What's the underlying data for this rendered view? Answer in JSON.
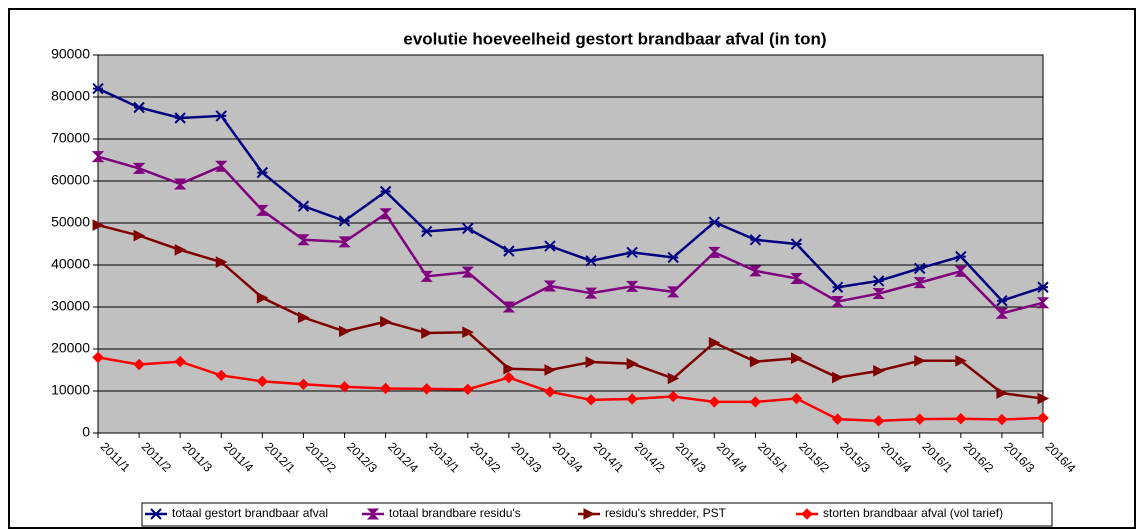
{
  "chart_data": {
    "type": "line",
    "title": "evolutie hoeveelheid gestort brandbaar afval (in ton)",
    "categories": [
      "2011/1",
      "2011/2",
      "2011/3",
      "2011/4",
      "2012/1",
      "2012/2",
      "2012/3",
      "2012/4",
      "2013/1",
      "2013/2",
      "2013/3",
      "2013/4",
      "2014/1",
      "2014/2",
      "2014/3",
      "2014/4",
      "2015/1",
      "2015/2",
      "2015/3",
      "2015/4",
      "2016/1",
      "2016/2",
      "2016/3",
      "2016/4"
    ],
    "series": [
      {
        "name": "totaal gestort brandbaar afval",
        "color": "#000080",
        "marker": "x",
        "values": [
          82000,
          77500,
          75000,
          75500,
          62000,
          54000,
          50500,
          57500,
          48000,
          48700,
          43300,
          44500,
          41000,
          43000,
          41800,
          50200,
          46000,
          45000,
          34700,
          36200,
          39200,
          42000,
          31500,
          34700
        ]
      },
      {
        "name": "totaal brandbare residu's",
        "color": "#800080",
        "marker": "hourglass",
        "values": [
          65800,
          63000,
          59300,
          63500,
          53000,
          46000,
          45500,
          52200,
          37300,
          38300,
          30000,
          35000,
          33300,
          34900,
          33600,
          43000,
          38600,
          36800,
          31300,
          33200,
          35800,
          38500,
          28500,
          31000
        ]
      },
      {
        "name": "residu's shredder, PST",
        "color": "#800000",
        "marker": "triangle",
        "values": [
          49500,
          47000,
          43600,
          40700,
          32200,
          27500,
          24200,
          26500,
          23800,
          24000,
          15300,
          15000,
          16900,
          16500,
          13000,
          21500,
          17000,
          17800,
          13200,
          14800,
          17200,
          17200,
          9500,
          8200
        ]
      },
      {
        "name": "storten brandbaar afval (vol tarief)",
        "color": "#ff0000",
        "marker": "diamond",
        "values": [
          18000,
          16300,
          17000,
          13700,
          12300,
          11600,
          11000,
          10600,
          10500,
          10400,
          13200,
          9800,
          7900,
          8100,
          8700,
          7400,
          7400,
          8200,
          3300,
          2900,
          3300,
          3400,
          3200,
          3600
        ]
      }
    ],
    "ylim": [
      0,
      90000
    ],
    "yticks": [
      0,
      10000,
      20000,
      30000,
      40000,
      50000,
      60000,
      70000,
      80000,
      90000
    ],
    "grid": true,
    "legend": "bottom"
  }
}
